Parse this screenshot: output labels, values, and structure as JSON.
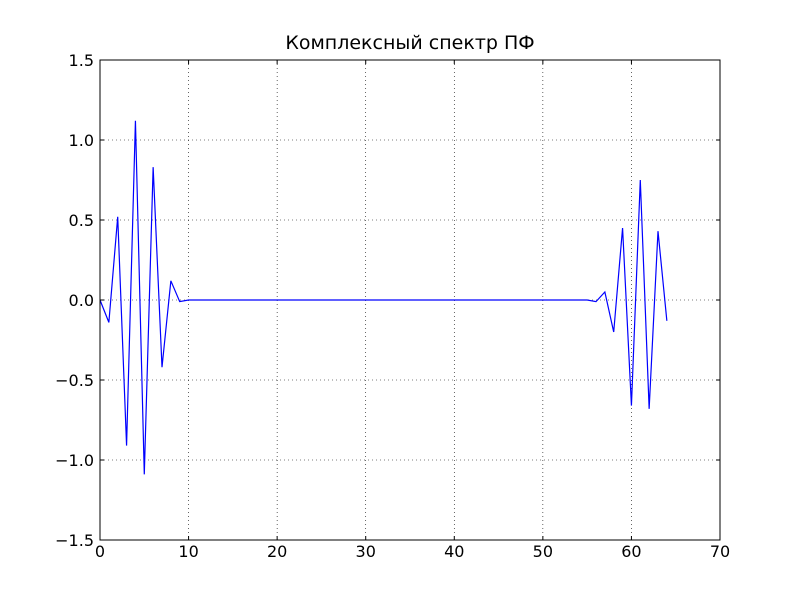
{
  "chart_data": {
    "type": "line",
    "title": "Комплексный спектр ПФ",
    "xlabel": "",
    "ylabel": "",
    "xlim": [
      0,
      70
    ],
    "ylim": [
      -1.5,
      1.5
    ],
    "grid": true,
    "x_ticks": [
      0,
      10,
      20,
      30,
      40,
      50,
      60,
      70
    ],
    "x_tick_labels": [
      "0",
      "10",
      "20",
      "30",
      "40",
      "50",
      "60",
      "70"
    ],
    "y_ticks": [
      1.5,
      1.0,
      0.5,
      0.0,
      -0.5,
      -1.0,
      -1.5
    ],
    "y_tick_labels": [
      "1.5",
      "1.0",
      "0.5",
      "0.0",
      "−0.5",
      "−1.0",
      "−1.5"
    ],
    "series": [
      {
        "color": "#0000ff",
        "x": [
          0,
          1,
          2,
          3,
          4,
          5,
          6,
          7,
          8,
          9,
          10,
          11,
          12,
          13,
          14,
          15,
          16,
          17,
          18,
          19,
          20,
          21,
          22,
          23,
          24,
          25,
          26,
          27,
          28,
          29,
          30,
          31,
          32,
          33,
          34,
          35,
          36,
          37,
          38,
          39,
          40,
          41,
          42,
          43,
          44,
          45,
          46,
          47,
          48,
          49,
          50,
          51,
          52,
          53,
          54,
          55,
          56,
          57,
          58,
          59,
          60,
          61,
          62,
          63,
          64
        ],
        "y": [
          0.0,
          -0.14,
          0.52,
          -0.91,
          1.12,
          -1.09,
          0.83,
          -0.42,
          0.12,
          -0.01,
          0.0,
          0.0,
          0.0,
          0.0,
          0.0,
          0.0,
          0.0,
          0.0,
          0.0,
          0.0,
          0.0,
          0.0,
          0.0,
          0.0,
          0.0,
          0.0,
          0.0,
          0.0,
          0.0,
          0.0,
          0.0,
          0.0,
          0.0,
          0.0,
          0.0,
          0.0,
          0.0,
          0.0,
          0.0,
          0.0,
          0.0,
          0.0,
          0.0,
          0.0,
          0.0,
          0.0,
          0.0,
          0.0,
          0.0,
          0.0,
          0.0,
          0.0,
          0.0,
          0.0,
          0.0,
          0.0,
          -0.01,
          0.05,
          -0.2,
          0.45,
          -0.66,
          0.75,
          -0.68,
          0.43,
          -0.13
        ]
      }
    ]
  }
}
